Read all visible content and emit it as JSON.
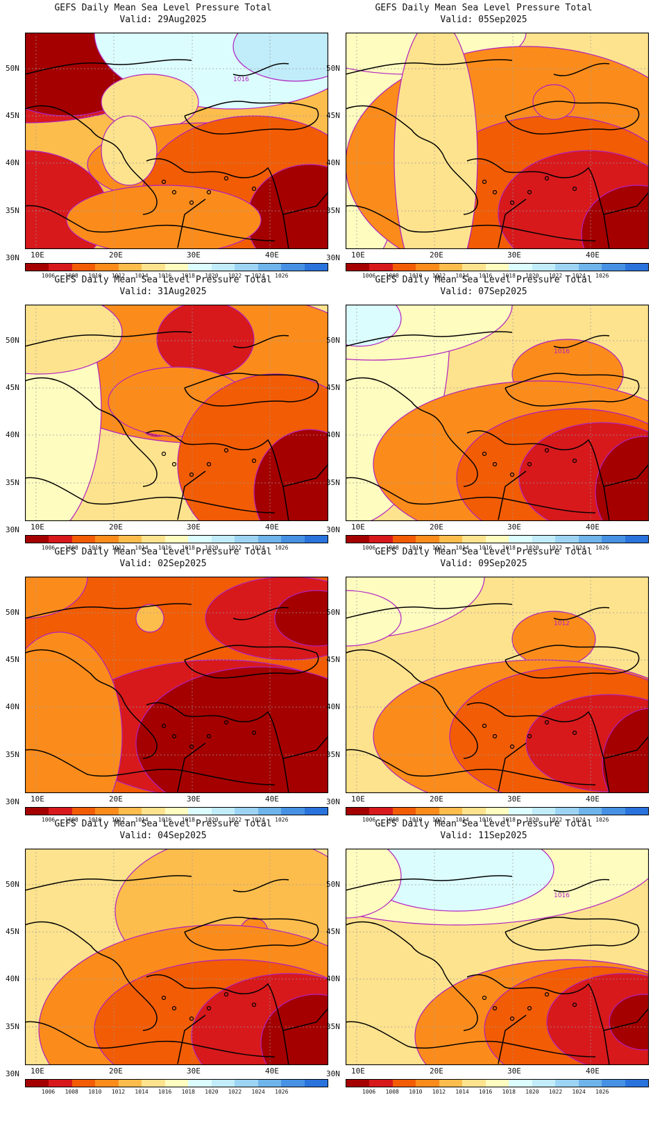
{
  "panels": [
    {
      "title": "GEFS Daily Mean Sea Level Pressure Total",
      "valid": "Valid: 29Aug2025",
      "contour_labels": [
        "1016"
      ]
    },
    {
      "title": "GEFS Daily Mean Sea Level Pressure Total",
      "valid": "Valid: 05Sep2025",
      "contour_labels": []
    },
    {
      "title": "GEFS Daily Mean Sea Level Pressure Total",
      "valid": "Valid: 31Aug2025",
      "contour_labels": []
    },
    {
      "title": "GEFS Daily Mean Sea Level Pressure Total",
      "valid": "Valid: 07Sep2025",
      "contour_labels": [
        "1016"
      ]
    },
    {
      "title": "GEFS Daily Mean Sea Level Pressure Total",
      "valid": "Valid: 02Sep2025",
      "contour_labels": []
    },
    {
      "title": "GEFS Daily Mean Sea Level Pressure Total",
      "valid": "Valid: 09Sep2025",
      "contour_labels": [
        "1012"
      ]
    },
    {
      "title": "GEFS Daily Mean Sea Level Pressure Total",
      "valid": "Valid: 04Sep2025",
      "contour_labels": []
    },
    {
      "title": "GEFS Daily Mean Sea Level Pressure Total",
      "valid": "Valid: 11Sep2025",
      "contour_labels": [
        "1016"
      ]
    }
  ],
  "axes": {
    "lat_labels": [
      "50N",
      "45N",
      "40N",
      "35N",
      "30N"
    ],
    "lon_labels": [
      "10E",
      "20E",
      "30E",
      "40E"
    ]
  },
  "colorbar": {
    "labels": [
      "1006",
      "1008",
      "1010",
      "1012",
      "1014",
      "1016",
      "1018",
      "1020",
      "1022",
      "1024",
      "1026"
    ],
    "colors": [
      "#a50000",
      "#d7191c",
      "#f25c05",
      "#fb8c1c",
      "#fdbd4d",
      "#fee38e",
      "#fffcc0",
      "#dcfdfd",
      "#c1ecf9",
      "#9ed4f3",
      "#6fb4ea",
      "#4691e4",
      "#2a73dc"
    ]
  },
  "colors": {
    "contour": "#b020c0",
    "coast": "#000000",
    "grid": "#999999"
  }
}
